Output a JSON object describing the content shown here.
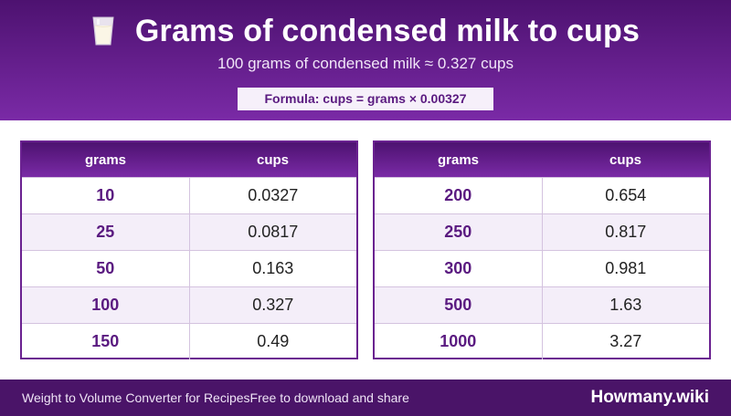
{
  "header": {
    "icon": "milk-glass-icon",
    "title": "Grams of condensed milk to cups",
    "subtitle": "100 grams of condensed milk ≈ 0.327 cups",
    "formula": "Formula: cups = grams × 0.00327"
  },
  "tables": [
    {
      "col_grams": "grams",
      "col_cups": "cups",
      "rows": [
        {
          "grams": "10",
          "cups": "0.0327"
        },
        {
          "grams": "25",
          "cups": "0.0817"
        },
        {
          "grams": "50",
          "cups": "0.163"
        },
        {
          "grams": "100",
          "cups": "0.327"
        },
        {
          "grams": "150",
          "cups": "0.49"
        }
      ]
    },
    {
      "col_grams": "grams",
      "col_cups": "cups",
      "rows": [
        {
          "grams": "200",
          "cups": "0.654"
        },
        {
          "grams": "250",
          "cups": "0.817"
        },
        {
          "grams": "300",
          "cups": "0.981"
        },
        {
          "grams": "500",
          "cups": "1.63"
        },
        {
          "grams": "1000",
          "cups": "3.27"
        }
      ]
    }
  ],
  "footer": {
    "tagline": "Weight to Volume Converter for RecipesFree to download and share",
    "brand": "Howmany.wiki"
  },
  "colors": {
    "header_dark": "#4d1270",
    "header_light": "#7a2aa6",
    "accent_text": "#5a1a80",
    "row_alt": "#f4eef9"
  }
}
